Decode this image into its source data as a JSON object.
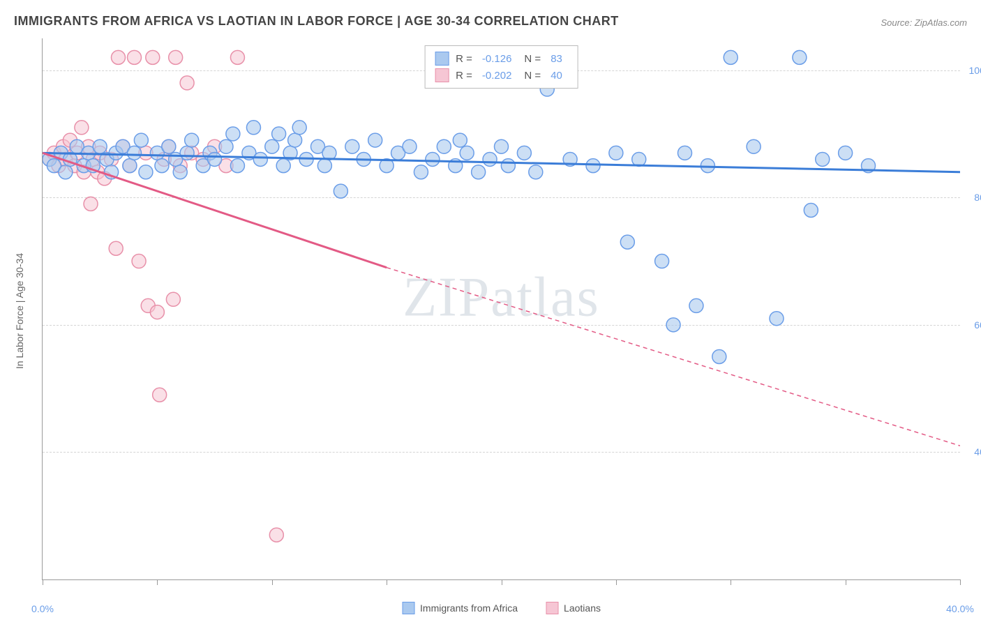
{
  "title": "IMMIGRANTS FROM AFRICA VS LAOTIAN IN LABOR FORCE | AGE 30-34 CORRELATION CHART",
  "source": "Source: ZipAtlas.com",
  "watermark": "ZIPatlas",
  "chart": {
    "type": "scatter",
    "ylabel": "In Labor Force | Age 30-34",
    "xlim": [
      0,
      40
    ],
    "ylim": [
      20,
      105
    ],
    "ytick_values": [
      40,
      60,
      80,
      100
    ],
    "ytick_labels": [
      "40.0%",
      "60.0%",
      "80.0%",
      "100.0%"
    ],
    "xtick_values": [
      0,
      5,
      10,
      15,
      20,
      25,
      30,
      35,
      40
    ],
    "xtick_labels_shown": {
      "0": "0.0%",
      "40": "40.0%"
    },
    "background_color": "#ffffff",
    "grid_color": "#d4d4d4",
    "axis_label_color": "#6a9de8",
    "series": [
      {
        "name": "Immigrants from Africa",
        "color_fill": "#aac9ef",
        "color_stroke": "#6a9de8",
        "line_color": "#3b7dd8",
        "marker_opacity": 0.6,
        "marker_radius": 10,
        "R": "-0.126",
        "N": "83",
        "trend": {
          "x1": 0,
          "y1": 87,
          "x2": 40,
          "y2": 84
        },
        "points": [
          {
            "x": 0.3,
            "y": 86
          },
          {
            "x": 0.5,
            "y": 85
          },
          {
            "x": 0.8,
            "y": 87
          },
          {
            "x": 1.0,
            "y": 84
          },
          {
            "x": 1.2,
            "y": 86
          },
          {
            "x": 1.5,
            "y": 88
          },
          {
            "x": 1.8,
            "y": 85
          },
          {
            "x": 2.0,
            "y": 87
          },
          {
            "x": 2.2,
            "y": 85
          },
          {
            "x": 2.5,
            "y": 88
          },
          {
            "x": 2.8,
            "y": 86
          },
          {
            "x": 3.0,
            "y": 84
          },
          {
            "x": 3.2,
            "y": 87
          },
          {
            "x": 3.5,
            "y": 88
          },
          {
            "x": 3.8,
            "y": 85
          },
          {
            "x": 4.0,
            "y": 87
          },
          {
            "x": 4.3,
            "y": 89
          },
          {
            "x": 4.5,
            "y": 84
          },
          {
            "x": 5.0,
            "y": 87
          },
          {
            "x": 5.2,
            "y": 85
          },
          {
            "x": 5.5,
            "y": 88
          },
          {
            "x": 5.8,
            "y": 86
          },
          {
            "x": 6.0,
            "y": 84
          },
          {
            "x": 6.3,
            "y": 87
          },
          {
            "x": 6.5,
            "y": 89
          },
          {
            "x": 7.0,
            "y": 85
          },
          {
            "x": 7.3,
            "y": 87
          },
          {
            "x": 7.5,
            "y": 86
          },
          {
            "x": 8.0,
            "y": 88
          },
          {
            "x": 8.3,
            "y": 90
          },
          {
            "x": 8.5,
            "y": 85
          },
          {
            "x": 9.0,
            "y": 87
          },
          {
            "x": 9.2,
            "y": 91
          },
          {
            "x": 9.5,
            "y": 86
          },
          {
            "x": 10.0,
            "y": 88
          },
          {
            "x": 10.3,
            "y": 90
          },
          {
            "x": 10.5,
            "y": 85
          },
          {
            "x": 10.8,
            "y": 87
          },
          {
            "x": 11.0,
            "y": 89
          },
          {
            "x": 11.2,
            "y": 91
          },
          {
            "x": 11.5,
            "y": 86
          },
          {
            "x": 12.0,
            "y": 88
          },
          {
            "x": 12.3,
            "y": 85
          },
          {
            "x": 12.5,
            "y": 87
          },
          {
            "x": 13.0,
            "y": 81
          },
          {
            "x": 13.5,
            "y": 88
          },
          {
            "x": 14.0,
            "y": 86
          },
          {
            "x": 14.5,
            "y": 89
          },
          {
            "x": 15.0,
            "y": 85
          },
          {
            "x": 15.5,
            "y": 87
          },
          {
            "x": 16.0,
            "y": 88
          },
          {
            "x": 16.5,
            "y": 84
          },
          {
            "x": 17.0,
            "y": 86
          },
          {
            "x": 17.5,
            "y": 88
          },
          {
            "x": 18.0,
            "y": 85
          },
          {
            "x": 18.2,
            "y": 89
          },
          {
            "x": 18.5,
            "y": 87
          },
          {
            "x": 19.0,
            "y": 84
          },
          {
            "x": 19.5,
            "y": 86
          },
          {
            "x": 20.0,
            "y": 88
          },
          {
            "x": 20.3,
            "y": 85
          },
          {
            "x": 21.0,
            "y": 87
          },
          {
            "x": 21.5,
            "y": 84
          },
          {
            "x": 22.0,
            "y": 97
          },
          {
            "x": 23.0,
            "y": 86
          },
          {
            "x": 24.0,
            "y": 85
          },
          {
            "x": 25.0,
            "y": 87
          },
          {
            "x": 25.5,
            "y": 73
          },
          {
            "x": 26.0,
            "y": 86
          },
          {
            "x": 27.0,
            "y": 70
          },
          {
            "x": 27.5,
            "y": 60
          },
          {
            "x": 28.0,
            "y": 87
          },
          {
            "x": 28.5,
            "y": 63
          },
          {
            "x": 29.0,
            "y": 85
          },
          {
            "x": 29.5,
            "y": 55
          },
          {
            "x": 30.0,
            "y": 102
          },
          {
            "x": 31.0,
            "y": 88
          },
          {
            "x": 32.0,
            "y": 61
          },
          {
            "x": 33.0,
            "y": 102
          },
          {
            "x": 33.5,
            "y": 78
          },
          {
            "x": 34.0,
            "y": 86
          },
          {
            "x": 35.0,
            "y": 87
          },
          {
            "x": 36.0,
            "y": 85
          }
        ]
      },
      {
        "name": "Laotians",
        "color_fill": "#f6c6d4",
        "color_stroke": "#e890a9",
        "line_color": "#e35a85",
        "marker_opacity": 0.55,
        "marker_radius": 10,
        "R": "-0.202",
        "N": "40",
        "trend_solid": {
          "x1": 0,
          "y1": 87,
          "x2": 15,
          "y2": 69
        },
        "trend_dashed": {
          "x1": 15,
          "y1": 69,
          "x2": 40,
          "y2": 41
        },
        "points": [
          {
            "x": 0.3,
            "y": 86
          },
          {
            "x": 0.5,
            "y": 87
          },
          {
            "x": 0.7,
            "y": 85
          },
          {
            "x": 0.9,
            "y": 88
          },
          {
            "x": 1.0,
            "y": 86
          },
          {
            "x": 1.2,
            "y": 89
          },
          {
            "x": 1.4,
            "y": 85
          },
          {
            "x": 1.5,
            "y": 87
          },
          {
            "x": 1.7,
            "y": 91
          },
          {
            "x": 1.8,
            "y": 84
          },
          {
            "x": 2.0,
            "y": 88
          },
          {
            "x": 2.1,
            "y": 79
          },
          {
            "x": 2.2,
            "y": 86
          },
          {
            "x": 2.4,
            "y": 84
          },
          {
            "x": 2.5,
            "y": 87
          },
          {
            "x": 2.7,
            "y": 83
          },
          {
            "x": 3.0,
            "y": 86
          },
          {
            "x": 3.2,
            "y": 72
          },
          {
            "x": 3.3,
            "y": 102
          },
          {
            "x": 3.5,
            "y": 88
          },
          {
            "x": 3.8,
            "y": 85
          },
          {
            "x": 4.0,
            "y": 102
          },
          {
            "x": 4.2,
            "y": 70
          },
          {
            "x": 4.5,
            "y": 87
          },
          {
            "x": 4.6,
            "y": 63
          },
          {
            "x": 4.8,
            "y": 102
          },
          {
            "x": 5.0,
            "y": 62
          },
          {
            "x": 5.1,
            "y": 49
          },
          {
            "x": 5.3,
            "y": 86
          },
          {
            "x": 5.5,
            "y": 88
          },
          {
            "x": 5.7,
            "y": 64
          },
          {
            "x": 5.8,
            "y": 102
          },
          {
            "x": 6.0,
            "y": 85
          },
          {
            "x": 6.3,
            "y": 98
          },
          {
            "x": 6.5,
            "y": 87
          },
          {
            "x": 7.0,
            "y": 86
          },
          {
            "x": 7.5,
            "y": 88
          },
          {
            "x": 8.0,
            "y": 85
          },
          {
            "x": 8.5,
            "y": 102
          },
          {
            "x": 10.2,
            "y": 27
          }
        ]
      }
    ],
    "bottom_legend": [
      {
        "label": "Immigrants from Africa",
        "fill": "#aac9ef",
        "stroke": "#6a9de8"
      },
      {
        "label": "Laotians",
        "fill": "#f6c6d4",
        "stroke": "#e890a9"
      }
    ]
  }
}
